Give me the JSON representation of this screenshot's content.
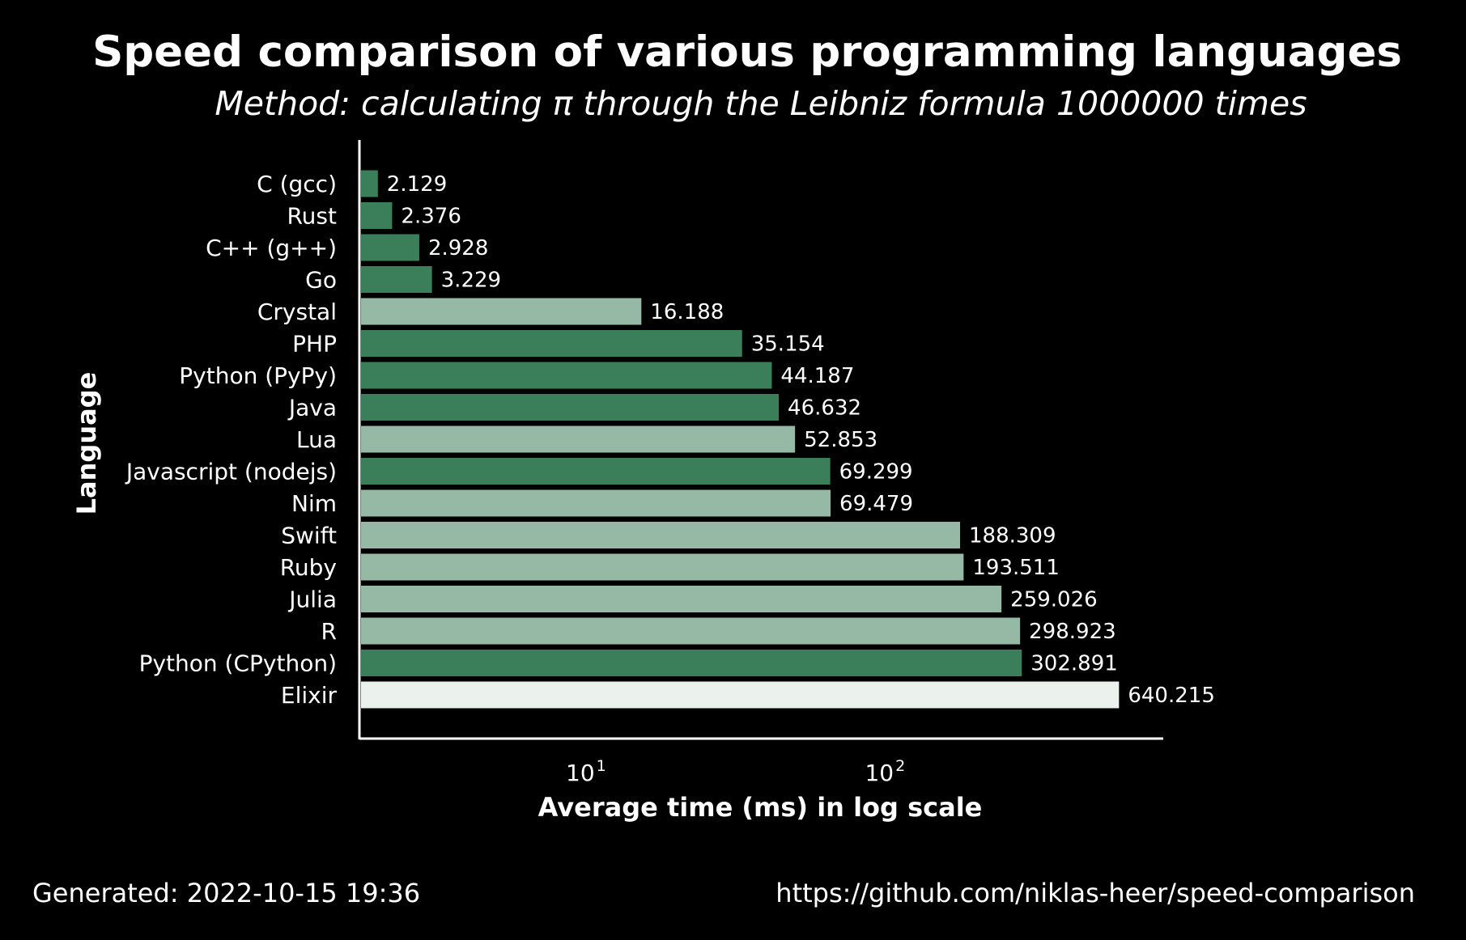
{
  "chart_data": {
    "type": "bar",
    "orientation": "horizontal",
    "title": "Speed comparison of various programming languages",
    "subtitle": "Method: calculating π through the Leibniz formula 1000000 times",
    "xlabel": "Average time (ms) in log scale",
    "ylabel": "Language",
    "xscale": "log",
    "xlim": [
      1.87,
      900
    ],
    "xticks": [
      {
        "base": "10",
        "exp": "1",
        "value": 10
      },
      {
        "base": "10",
        "exp": "2",
        "value": 100
      }
    ],
    "grid": false,
    "categories": [
      "C (gcc)",
      "Rust",
      "C++ (g++)",
      "Go",
      "Crystal",
      "PHP",
      "Python (PyPy)",
      "Java",
      "Lua",
      "Javascript (nodejs)",
      "Nim",
      "Swift",
      "Ruby",
      "Julia",
      "R",
      "Python (CPython)",
      "Elixir"
    ],
    "values": [
      2.129,
      2.376,
      2.928,
      3.229,
      16.188,
      35.154,
      44.187,
      46.632,
      52.853,
      69.299,
      69.479,
      188.309,
      193.511,
      259.026,
      298.923,
      302.891,
      640.215
    ],
    "value_labels": [
      "2.129",
      "2.376",
      "2.928",
      "3.229",
      "16.188",
      "35.154",
      "44.187",
      "46.632",
      "52.853",
      "69.299",
      "69.479",
      "188.309",
      "193.511",
      "259.026",
      "298.923",
      "302.891",
      "640.215"
    ],
    "bar_colors": [
      "#3a7f5a",
      "#3a7f5a",
      "#3a7f5a",
      "#3a7f5a",
      "#95b9a5",
      "#3a7f5a",
      "#3a7f5a",
      "#3a7f5a",
      "#95b9a5",
      "#3a7f5a",
      "#95b9a5",
      "#95b9a5",
      "#95b9a5",
      "#95b9a5",
      "#95b9a5",
      "#3a7f5a",
      "#ebf1ed"
    ]
  },
  "footer": {
    "generated": "Generated: 2022-10-15 19:36",
    "url": "https://github.com/niklas-heer/speed-comparison"
  },
  "colors": {
    "background": "#000000",
    "text": "#ffffff",
    "axis": "#ffffff"
  }
}
